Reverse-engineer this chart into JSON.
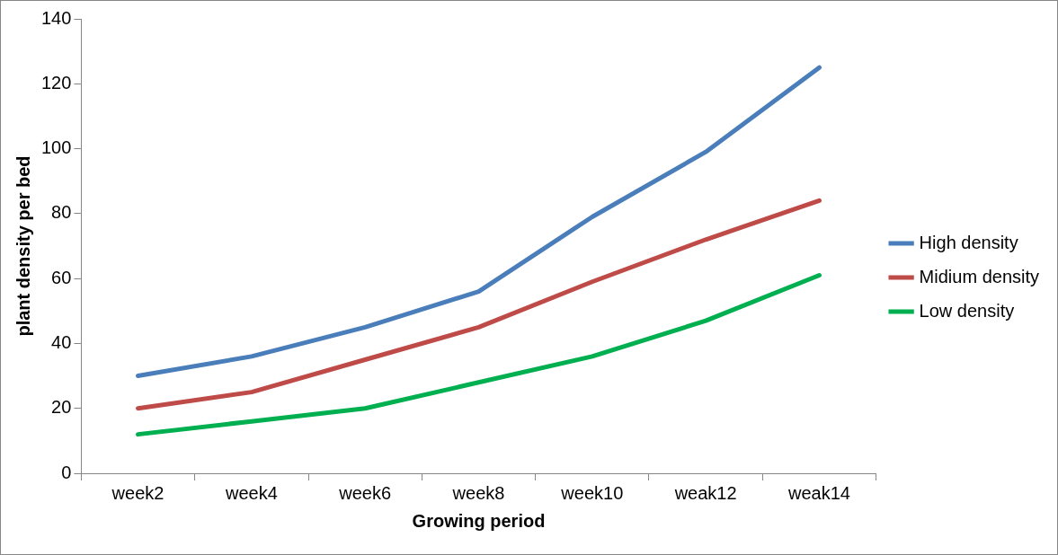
{
  "chart_data": {
    "type": "line",
    "xlabel": "Growing period",
    "ylabel": "plant density per bed",
    "categories": [
      "week2",
      "week4",
      "week6",
      "week8",
      "week10",
      "weak12",
      "weak14"
    ],
    "series": [
      {
        "name": "High density",
        "color": "#4a7ebb",
        "values": [
          30,
          36,
          45,
          56,
          79,
          99,
          125
        ]
      },
      {
        "name": "Midium density",
        "color": "#be4b48",
        "values": [
          20,
          25,
          35,
          45,
          59,
          72,
          84
        ]
      },
      {
        "name": "Low density",
        "color": "#00b050",
        "values": [
          12,
          16,
          20,
          28,
          36,
          47,
          61
        ]
      }
    ],
    "ylim": [
      0,
      140
    ],
    "yticks": [
      0,
      20,
      40,
      60,
      80,
      100,
      120,
      140
    ],
    "grid": false,
    "legend": "right",
    "marker": "none",
    "line_style": "solid"
  }
}
